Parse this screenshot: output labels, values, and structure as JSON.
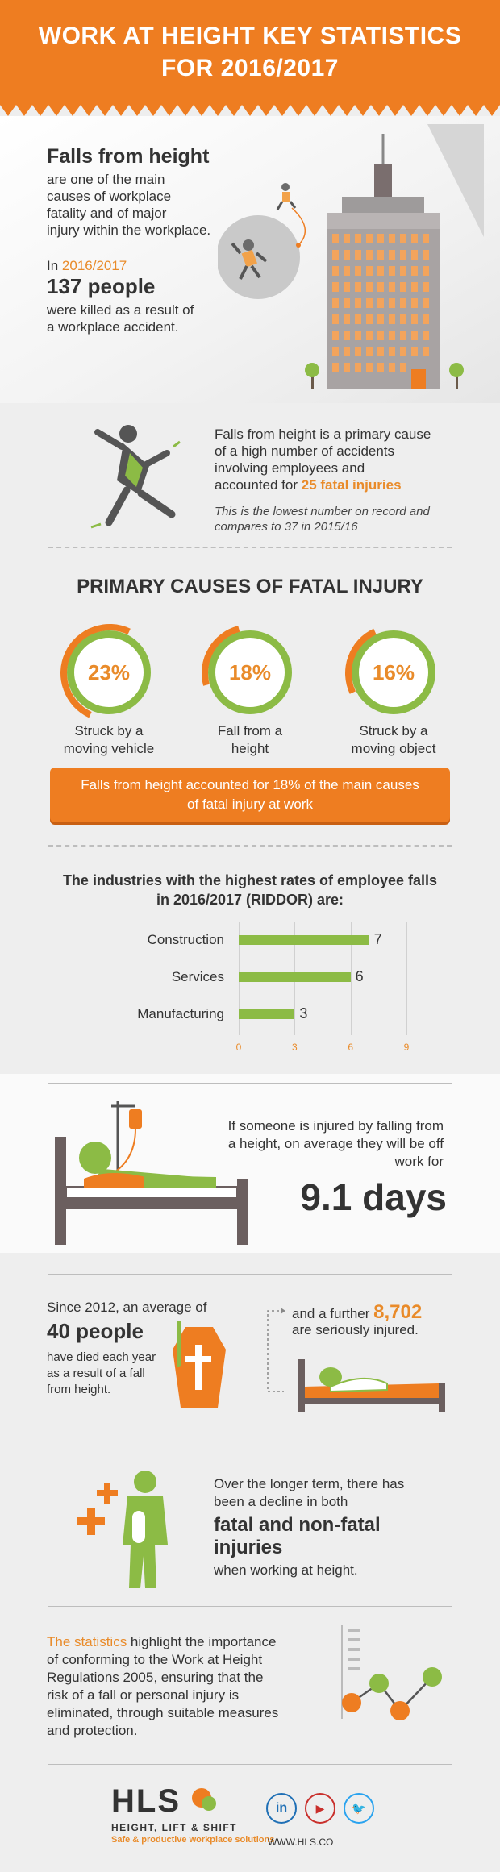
{
  "header": {
    "title_line1": "WORK AT HEIGHT KEY STATISTICS",
    "title_line2": "FOR 2016/2017"
  },
  "falls": {
    "headline": "Falls from height",
    "body": [
      "are one of the main",
      "causes of workplace",
      "fatality and of major",
      "injury within the workplace."
    ],
    "in_prefix": "In ",
    "year": "2016/2017",
    "people": "137 people",
    "killed": [
      "were killed as a result of",
      "a workplace accident."
    ]
  },
  "primary_cause": {
    "lines": [
      "Falls from height is a primary cause",
      "of a high number of accidents",
      "involving employees and"
    ],
    "last_prefix": "accounted for ",
    "fatal": "25 fatal injuries",
    "note": [
      "This is the lowest number on record and",
      "compares to 37 in 2015/16"
    ]
  },
  "causes": {
    "title": "PRIMARY CAUSES OF FATAL INJURY",
    "items": [
      {
        "pct": "23%",
        "line1": "Struck by a",
        "line2": "moving vehicle"
      },
      {
        "pct": "18%",
        "line1": "Fall from a",
        "line2": "height"
      },
      {
        "pct": "16%",
        "line1": "Struck by a",
        "line2": "moving object"
      }
    ],
    "banner": [
      "Falls from height accounted for 18% of the main causes",
      "of fatal injury at work"
    ]
  },
  "chart_data": {
    "type": "bar",
    "orientation": "horizontal",
    "title": "The industries with the highest rates of employee falls in 2016/2017 (RIDDOR) are:",
    "title_lines": [
      "The industries with the highest rates of employee falls",
      "in 2016/2017 (RIDDOR) are:"
    ],
    "categories": [
      "Construction",
      "Services",
      "Manufacturing"
    ],
    "values": [
      7,
      6,
      3
    ],
    "value_labels": [
      "7",
      "6",
      "3"
    ],
    "xlim": [
      0,
      9
    ],
    "xticks": [
      "0",
      "3",
      "6",
      "9"
    ],
    "grid": true,
    "colors": {
      "bar": "#8cbb45",
      "tick": "#e98b2a"
    }
  },
  "days_off": {
    "lines": [
      "If someone is injured by falling from",
      "a height, on average they will be off",
      "work for"
    ],
    "value": "9.1 days"
  },
  "since2012": {
    "line1_prefix": "Since  2012, an average of",
    "people": "40 people",
    "rest": [
      "have died each year",
      "as a result of a fall",
      "from height."
    ],
    "further": "and a further ",
    "further_num": "8,702",
    "seriously": "are seriously injured."
  },
  "decline": {
    "lines": [
      "Over the longer term, there has",
      "been a decline in both"
    ],
    "highlight": [
      "fatal and non-fatal",
      "injuries"
    ],
    "tail": "when working at height."
  },
  "importance": {
    "highlight": "The statistics",
    "first_rest": " highlight the importance",
    "lines": [
      "of conforming to the Work at Height",
      "Regulations 2005, ensuring that the",
      "risk of a fall or personal injury is",
      "eliminated, through suitable measures",
      "and protection."
    ]
  },
  "footer": {
    "logo": "HLS",
    "company": "HEIGHT, LIFT & SHIFT",
    "tagline": "Safe & productive workplace solutions",
    "social_icons": [
      "linkedin-icon",
      "youtube-icon",
      "twitter-icon"
    ],
    "social_glyphs": [
      "in",
      "▶",
      "🐦"
    ],
    "url": "WWW.HLS.CO"
  },
  "colors": {
    "orange": "#ee7d21",
    "green": "#8cbb45",
    "text": "#333333"
  }
}
